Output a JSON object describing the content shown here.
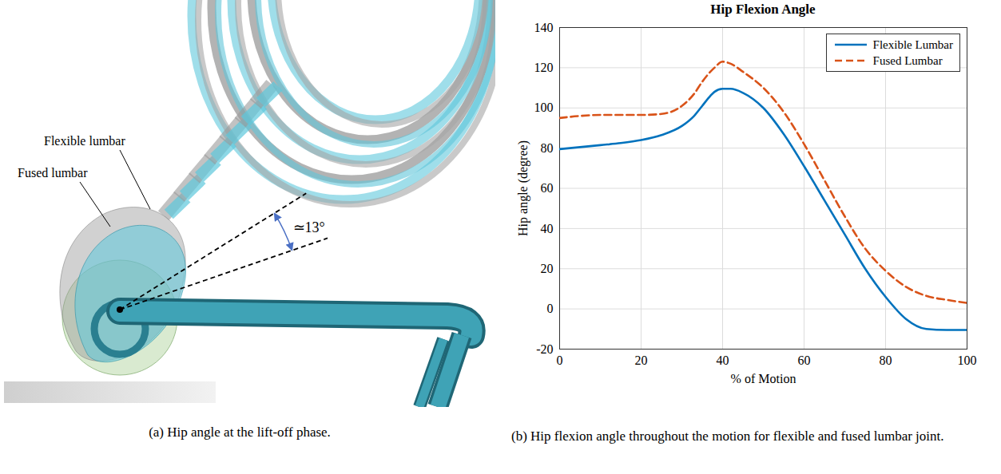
{
  "chart_data": {
    "type": "line",
    "title": "Hip Flexion Angle",
    "x_label": "% of Motion",
    "y_label": "Hip angle (degree)",
    "x": [
      0,
      5,
      10,
      15,
      20,
      25,
      30,
      33,
      35,
      37,
      38,
      40,
      42,
      45,
      50,
      55,
      60,
      65,
      70,
      75,
      80,
      85,
      90,
      95,
      100
    ],
    "series": [
      {
        "name": "Flexible Lumbar",
        "color": "#0072BD",
        "line_style": "solid",
        "values": [
          79.5,
          80.5,
          81.5,
          82.5,
          84,
          86.5,
          91,
          96,
          101,
          106,
          108,
          109.5,
          109.5,
          107.5,
          100,
          87,
          71,
          54,
          37,
          20,
          6,
          -5,
          -10,
          -10.5,
          -10.5
        ]
      },
      {
        "name": "Fused Lumbar",
        "color": "#D95319",
        "line_style": "dashed",
        "values": [
          95,
          96,
          96.5,
          96.5,
          96.5,
          97,
          101,
          107,
          113,
          118,
          120,
          123,
          122,
          118,
          110,
          98,
          82,
          64,
          46,
          30,
          19,
          11,
          6.5,
          4.5,
          3
        ]
      }
    ],
    "xlim": [
      0,
      100
    ],
    "xticks": [
      0,
      20,
      40,
      60,
      80,
      100
    ],
    "ylim": [
      -20,
      140
    ],
    "yticks": [
      -20,
      0,
      20,
      40,
      60,
      80,
      100,
      120,
      140
    ],
    "grid": true,
    "legend": "top-right"
  },
  "figure": {
    "panel_a": {
      "labels": {
        "flexible": "Flexible lumbar",
        "fused": "Fused lumbar"
      },
      "angle": {
        "value": 13,
        "label": "≃13°"
      },
      "caption": "(a) Hip angle at the lift-off phase."
    },
    "panel_b": {
      "caption": "(b) Hip flexion angle throughout the motion for flexible and fused lumbar joint."
    }
  }
}
